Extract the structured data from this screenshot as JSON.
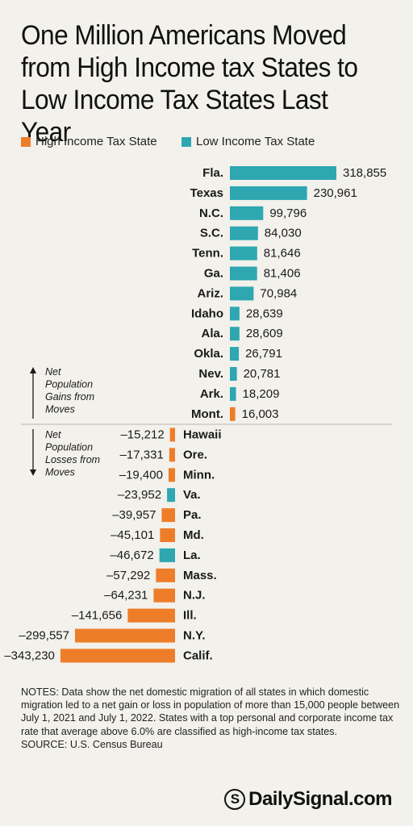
{
  "title": "One Million Americans Moved from High Income tax States to Low Income Tax States Last Year",
  "legend": {
    "high": {
      "label": "High Income Tax State",
      "color": "#ee7d29"
    },
    "low": {
      "label": "Low Income Tax State",
      "color": "#2ea7b0"
    }
  },
  "annotations": {
    "gains": "Net Population Gains from Moves",
    "losses": "Net Population Losses from Moves"
  },
  "chart_data": {
    "type": "bar",
    "orientation": "horizontal",
    "title": "One Million Americans Moved from High Income tax States to Low Income Tax States Last Year",
    "gains": [
      {
        "state": "Fla.",
        "value": 318855,
        "label": "318,855",
        "group": "low"
      },
      {
        "state": "Texas",
        "value": 230961,
        "label": "230,961",
        "group": "low"
      },
      {
        "state": "N.C.",
        "value": 99796,
        "label": "99,796",
        "group": "low"
      },
      {
        "state": "S.C.",
        "value": 84030,
        "label": "84,030",
        "group": "low"
      },
      {
        "state": "Tenn.",
        "value": 81646,
        "label": "81,646",
        "group": "low"
      },
      {
        "state": "Ga.",
        "value": 81406,
        "label": "81,406",
        "group": "low"
      },
      {
        "state": "Ariz.",
        "value": 70984,
        "label": "70,984",
        "group": "low"
      },
      {
        "state": "Idaho",
        "value": 28639,
        "label": "28,639",
        "group": "low"
      },
      {
        "state": "Ala.",
        "value": 28609,
        "label": "28,609",
        "group": "low"
      },
      {
        "state": "Okla.",
        "value": 26791,
        "label": "26,791",
        "group": "low"
      },
      {
        "state": "Nev.",
        "value": 20781,
        "label": "20,781",
        "group": "low"
      },
      {
        "state": "Ark.",
        "value": 18209,
        "label": "18,209",
        "group": "low"
      },
      {
        "state": "Mont.",
        "value": 16003,
        "label": "16,003",
        "group": "high"
      }
    ],
    "losses": [
      {
        "state": "Hawaii",
        "value": -15212,
        "label": "–15,212",
        "group": "high"
      },
      {
        "state": "Ore.",
        "value": -17331,
        "label": "–17,331",
        "group": "high"
      },
      {
        "state": "Minn.",
        "value": -19400,
        "label": "–19,400",
        "group": "high"
      },
      {
        "state": "Va.",
        "value": -23952,
        "label": "–23,952",
        "group": "low"
      },
      {
        "state": "Pa.",
        "value": -39957,
        "label": "–39,957",
        "group": "high"
      },
      {
        "state": "Md.",
        "value": -45101,
        "label": "–45,101",
        "group": "high"
      },
      {
        "state": "La.",
        "value": -46672,
        "label": "–46,672",
        "group": "low"
      },
      {
        "state": "Mass.",
        "value": -57292,
        "label": "–57,292",
        "group": "high"
      },
      {
        "state": "N.J.",
        "value": -64231,
        "label": "–64,231",
        "group": "high"
      },
      {
        "state": "Ill.",
        "value": -141656,
        "label": "–141,656",
        "group": "high"
      },
      {
        "state": "N.Y.",
        "value": -299557,
        "label": "–299,557",
        "group": "high"
      },
      {
        "state": "Calif.",
        "value": -343230,
        "label": "–343,230",
        "group": "high"
      }
    ]
  },
  "notes": {
    "text": "NOTES: Data show the net domestic migration of all states in which domestic migration led to a net gain or loss in population of more than 15,000 people between July 1, 2021 and July 1, 2022. States with a top personal and corporate income tax rate that average above 6.0% are classified as high-income tax states.",
    "source": "SOURCE: U.S. Census Bureau"
  },
  "logo": {
    "mark": "S",
    "text": "DailySignal.com"
  }
}
